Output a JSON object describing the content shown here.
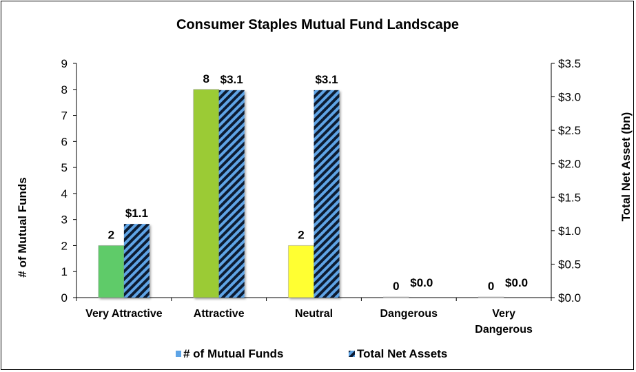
{
  "chart_data": {
    "type": "bar",
    "title": "Consumer Staples Mutual Fund Landscape",
    "categories": [
      "Very Attractive",
      "Attractive",
      "Neutral",
      "Dangerous",
      "Very Dangerous"
    ],
    "category_lines": [
      [
        "Very Attractive"
      ],
      [
        "Attractive"
      ],
      [
        "Neutral"
      ],
      [
        "Dangerous"
      ],
      [
        "Very",
        "Dangerous"
      ]
    ],
    "series": [
      {
        "name": "# of Mutual Funds",
        "axis": "left",
        "values": [
          2,
          8,
          2,
          0,
          0
        ],
        "labels": [
          "2",
          "8",
          "2",
          "0",
          "0"
        ],
        "colors": [
          "#5fcb69",
          "#9bcb36",
          "#ffff33",
          "#ff9999",
          "#ff3333"
        ]
      },
      {
        "name": "Total Net Assets",
        "axis": "right",
        "values": [
          1.1,
          3.1,
          3.1,
          0.0,
          0.0
        ],
        "labels": [
          "$1.1",
          "$3.1",
          "$3.1",
          "$0.0",
          "$0.0"
        ],
        "pattern_colors": [
          "#5ea4e6",
          "#0a1a33"
        ]
      }
    ],
    "ylabel": "# of Mutual Funds",
    "y2label": "Total Net Asset (bn)",
    "ylim": [
      0,
      9
    ],
    "y2lim": [
      0,
      3.5
    ],
    "yticks": [
      "0",
      "1",
      "2",
      "3",
      "4",
      "5",
      "6",
      "7",
      "8",
      "9"
    ],
    "y2ticks": [
      "$0.0",
      "$0.5",
      "$1.0",
      "$1.5",
      "$2.0",
      "$2.5",
      "$3.0",
      "$3.5"
    ],
    "grid": false,
    "legend_position": "bottom",
    "legend_colors": [
      "#5ea4e6"
    ]
  }
}
